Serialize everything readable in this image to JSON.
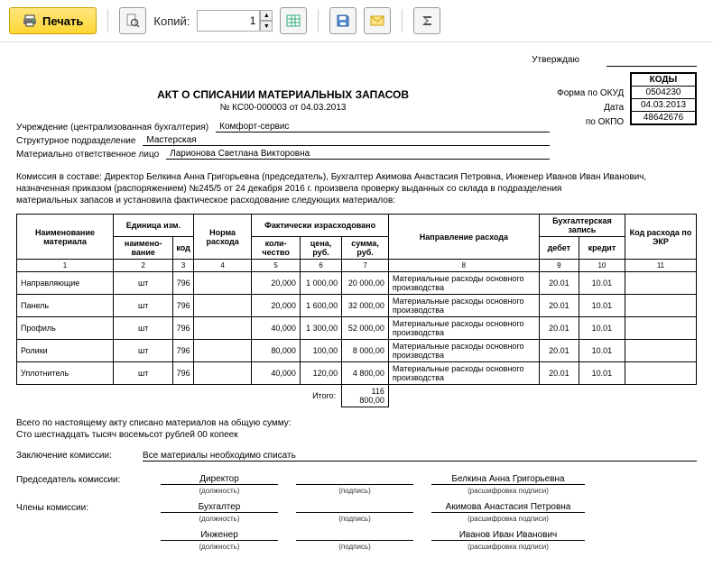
{
  "toolbar": {
    "print_label": "Печать",
    "copies_label": "Копий:",
    "copies_value": "1"
  },
  "approve_label": "Утверждаю",
  "title": "АКТ О СПИСАНИИ МАТЕРИАЛЬНЫХ ЗАПАСОВ",
  "subtitle": "№ КС00-000003 от 04.03.2013",
  "codes": {
    "header": "КОДЫ",
    "okud_label": "Форма по ОКУД",
    "okud": "0504230",
    "date_label": "Дата",
    "date": "04.03.2013",
    "okpo_label": "по ОКПО",
    "okpo": "48642676"
  },
  "fields": {
    "org_label": "Учреждение (централизованная бухгалтерия)",
    "org_value": "Комфорт-сервис",
    "dept_label": "Структурное подразделение",
    "dept_value": "Мастерская",
    "resp_label": "Материально ответственное лицо",
    "resp_value": "Ларионова Светлана Викторовна"
  },
  "commission": {
    "line1": "Комиссия в составе: Директор Белкина Анна  Григорьевна (председатель), Бухгалтер Акимова Анастасия Петровна, Инженер Иванов Иван Иванович,",
    "line2": "назначенная приказом (распоряжением)  №245/5  от  24 декабря 2016 г.   произвела проверку выданных со склада в подразделения",
    "line3": "материальных запасов и установила фактическое расходование следующих материалов:"
  },
  "headers": {
    "name": "Наименование материала",
    "unit": "Единица изм.",
    "unit_name": "наимено-вание",
    "unit_code": "код",
    "norm": "Норма расхода",
    "fact": "Фактически израсходовано",
    "qty": "коли-чество",
    "price": "цена, руб.",
    "sum": "сумма, руб.",
    "direction": "Направление расхода",
    "acct": "Бухгалтерская запись",
    "debit": "дебет",
    "credit": "кредит",
    "ekr": "Код расхода по ЭКР"
  },
  "numrow": [
    "1",
    "2",
    "3",
    "4",
    "5",
    "6",
    "7",
    "8",
    "9",
    "10",
    "11"
  ],
  "rows": [
    {
      "name": "Направляющие",
      "unit": "шт",
      "ucode": "796",
      "norm": "",
      "qty": "20,000",
      "price": "1 000,00",
      "sum": "20 000,00",
      "dir": "Материальные расходы основного производства",
      "deb": "20.01",
      "cred": "10.01",
      "ekr": ""
    },
    {
      "name": "Панель",
      "unit": "шт",
      "ucode": "796",
      "norm": "",
      "qty": "20,000",
      "price": "1 600,00",
      "sum": "32 000,00",
      "dir": "Материальные расходы основного производства",
      "deb": "20.01",
      "cred": "10.01",
      "ekr": ""
    },
    {
      "name": "Профиль",
      "unit": "шт",
      "ucode": "796",
      "norm": "",
      "qty": "40,000",
      "price": "1 300,00",
      "sum": "52 000,00",
      "dir": "Материальные расходы основного производства",
      "deb": "20.01",
      "cred": "10.01",
      "ekr": ""
    },
    {
      "name": "Ролики",
      "unit": "шт",
      "ucode": "796",
      "norm": "",
      "qty": "80,000",
      "price": "100,00",
      "sum": "8 000,00",
      "dir": "Материальные расходы основного производства",
      "deb": "20.01",
      "cred": "10.01",
      "ekr": ""
    },
    {
      "name": "Уплотнитель",
      "unit": "шт",
      "ucode": "796",
      "norm": "",
      "qty": "40,000",
      "price": "120,00",
      "sum": "4 800,00",
      "dir": "Материальные расходы основного производства",
      "deb": "20.01",
      "cred": "10.01",
      "ekr": ""
    }
  ],
  "total_label": "Итого:",
  "total_sum": "116 800,00",
  "summary": {
    "l1": "Всего по настоящему акту списано материалов на общую сумму:",
    "l2": "Сто шестнадцать тысяч восемьсот рублей 00 копеек"
  },
  "conclusion": {
    "label": "Заключение комиссии:",
    "value": "Все материалы необходимо списать"
  },
  "signs": {
    "chair_role": "Председатель комиссии:",
    "members_role": "Члены комиссии:",
    "pos_sub": "(должность)",
    "sign_sub": "(подпись)",
    "name_sub": "(расшифровка подписи)",
    "r1_pos": "Директор",
    "r1_name": "Белкина Анна  Григорьевна",
    "r2_pos": "Бухгалтер",
    "r2_name": "Акимова Анастасия Петровна",
    "r3_pos": "Инженер",
    "r3_name": "Иванов Иван Иванович"
  }
}
